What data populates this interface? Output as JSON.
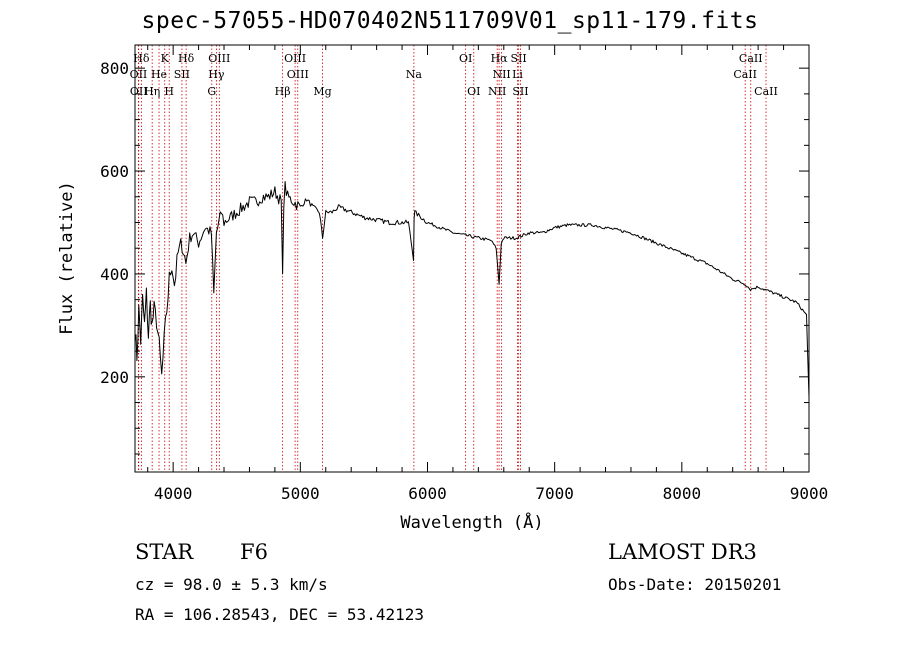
{
  "title": "spec-57055-HD070402N511709V01_sp11-179.fits",
  "info": {
    "object_class": "STAR",
    "subclass": "F6",
    "survey": "LAMOST DR3",
    "cz": "cz = 98.0 ± 5.3 km/s",
    "obs_date": "Obs-Date: 20150201",
    "radec": "RA = 106.28543, DEC =  53.42123"
  },
  "colors": {
    "line": "#000000",
    "marker": "#cc0000",
    "background": "#ffffff"
  },
  "chart_data": {
    "type": "line",
    "title": "spec-57055-HD070402N511709V01_sp11-179.fits",
    "xlabel": "Wavelength (Å)",
    "ylabel": "Flux (relative)",
    "xlim": [
      3700,
      9000
    ],
    "ylim": [
      15,
      845
    ],
    "xticks": [
      4000,
      5000,
      6000,
      7000,
      8000,
      9000
    ],
    "yticks": [
      200,
      400,
      600,
      800
    ],
    "series": [
      {
        "name": "flux",
        "x": [
          3700,
          3715,
          3730,
          3745,
          3760,
          3775,
          3790,
          3805,
          3820,
          3835,
          3850,
          3870,
          3890,
          3910,
          3930,
          3950,
          3970,
          3990,
          4010,
          4040,
          4070,
          4100,
          4130,
          4160,
          4200,
          4250,
          4300,
          4320,
          4340,
          4360,
          4380,
          4400,
          4450,
          4500,
          4550,
          4600,
          4650,
          4700,
          4750,
          4800,
          4850,
          4861,
          4870,
          4880,
          4900,
          4950,
          5000,
          5050,
          5100,
          5150,
          5175,
          5200,
          5250,
          5300,
          5400,
          5500,
          5600,
          5700,
          5800,
          5850,
          5890,
          5895,
          5900,
          5950,
          6000,
          6100,
          6200,
          6300,
          6400,
          6500,
          6540,
          6563,
          6580,
          6600,
          6700,
          6800,
          6900,
          7000,
          7100,
          7200,
          7300,
          7400,
          7500,
          7600,
          7700,
          7800,
          7900,
          8000,
          8100,
          8200,
          8300,
          8400,
          8500,
          8540,
          8600,
          8700,
          8800,
          8900,
          8950,
          8980,
          9000
        ],
        "values": [
          290,
          240,
          330,
          270,
          350,
          300,
          360,
          280,
          340,
          300,
          330,
          310,
          260,
          200,
          270,
          330,
          390,
          420,
          380,
          440,
          460,
          420,
          470,
          480,
          460,
          490,
          480,
          360,
          480,
          500,
          520,
          500,
          510,
          520,
          530,
          540,
          540,
          550,
          550,
          560,
          540,
          390,
          540,
          570,
          550,
          540,
          530,
          545,
          530,
          520,
          470,
          520,
          520,
          530,
          520,
          510,
          505,
          500,
          500,
          500,
          430,
          510,
          520,
          510,
          500,
          490,
          480,
          475,
          470,
          465,
          450,
          380,
          460,
          470,
          470,
          480,
          480,
          490,
          495,
          495,
          495,
          490,
          485,
          480,
          470,
          460,
          450,
          440,
          430,
          420,
          405,
          390,
          380,
          370,
          375,
          365,
          355,
          345,
          330,
          320,
          160
        ]
      }
    ],
    "line_markers": [
      {
        "label": "Hδ",
        "wavelength": 3750,
        "row": 1
      },
      {
        "label": "K",
        "wavelength": 3934,
        "row": 1
      },
      {
        "label": "Hδ",
        "wavelength": 4102,
        "row": 1
      },
      {
        "label": "OIII",
        "wavelength": 4363,
        "row": 1
      },
      {
        "label": "OIII",
        "wavelength": 4959,
        "row": 1
      },
      {
        "label": "OI",
        "wavelength": 6300,
        "row": 1
      },
      {
        "label": "Hα",
        "wavelength": 6563,
        "row": 1
      },
      {
        "label": "SII",
        "wavelength": 6717,
        "row": 1
      },
      {
        "label": "CaII",
        "wavelength": 8542,
        "row": 1
      },
      {
        "label": "OII",
        "wavelength": 3727,
        "row": 2
      },
      {
        "label": "He",
        "wavelength": 3889,
        "row": 2
      },
      {
        "label": "SII",
        "wavelength": 4069,
        "row": 2
      },
      {
        "label": "Hγ",
        "wavelength": 4340,
        "row": 2
      },
      {
        "label": "OIII",
        "wavelength": 4980,
        "row": 2
      },
      {
        "label": "Na",
        "wavelength": 5893,
        "row": 2
      },
      {
        "label": "NII",
        "wavelength": 6583,
        "row": 2
      },
      {
        "label": "Li",
        "wavelength": 6708,
        "row": 2
      },
      {
        "label": "CaII",
        "wavelength": 8498,
        "row": 2
      },
      {
        "label": "OII",
        "wavelength": 3729,
        "row": 3
      },
      {
        "label": "Hη",
        "wavelength": 3835,
        "row": 3
      },
      {
        "label": "H",
        "wavelength": 3969,
        "row": 3
      },
      {
        "label": "G",
        "wavelength": 4304,
        "row": 3
      },
      {
        "label": "Hβ",
        "wavelength": 4861,
        "row": 3
      },
      {
        "label": "Mg",
        "wavelength": 5175,
        "row": 3
      },
      {
        "label": "OI",
        "wavelength": 6364,
        "row": 3
      },
      {
        "label": "NII",
        "wavelength": 6548,
        "row": 3
      },
      {
        "label": "SII",
        "wavelength": 6731,
        "row": 3
      },
      {
        "label": "CaII",
        "wavelength": 8662,
        "row": 3
      }
    ]
  }
}
